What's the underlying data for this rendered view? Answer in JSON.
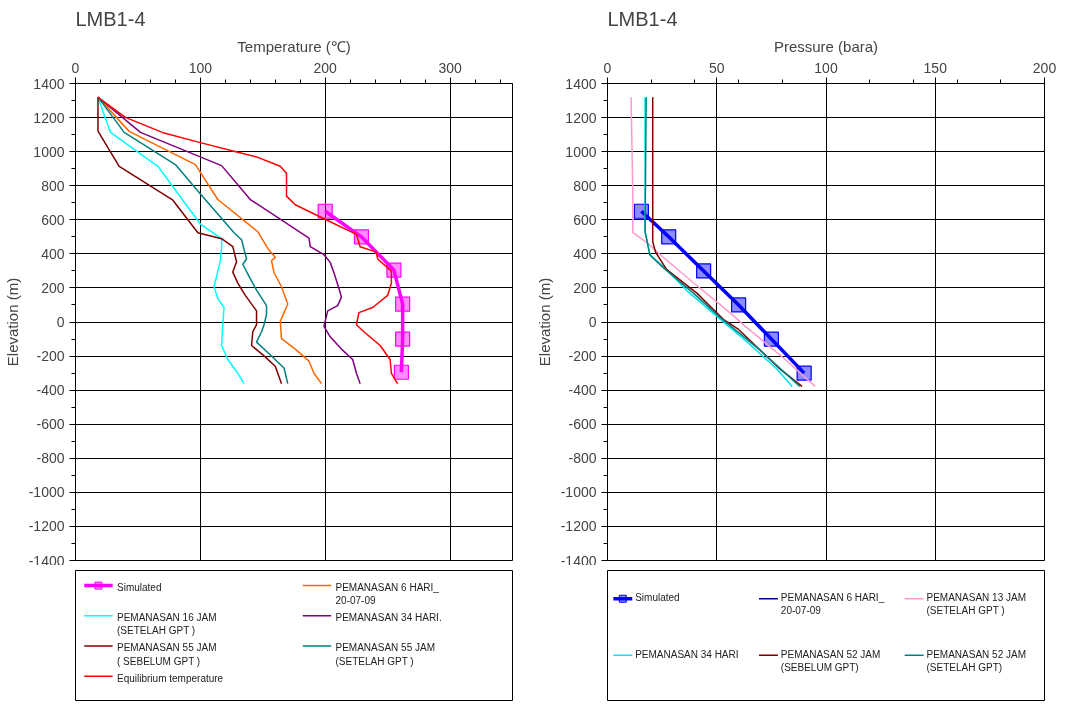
{
  "chart_data": [
    {
      "type": "line",
      "title": "LMB1-4",
      "xlabel": "Temperature (℃)",
      "ylabel": "Elevation (m)",
      "xlim": [
        0,
        350
      ],
      "xticks": [
        0,
        {
          "value": 20,
          "label": null
        },
        {
          "value": 40,
          "label": null
        },
        {
          "value": 60,
          "label": null
        },
        {
          "value": 80,
          "label": null
        },
        100,
        {
          "value": 120,
          "label": null
        },
        {
          "value": 140,
          "label": null
        },
        {
          "value": 160,
          "label": null
        },
        {
          "value": 180,
          "label": null
        },
        200,
        {
          "value": 220,
          "label": null
        },
        {
          "value": 240,
          "label": null
        },
        {
          "value": 260,
          "label": null
        },
        {
          "value": 280,
          "label": null
        },
        300,
        {
          "value": 320,
          "label": null
        },
        {
          "value": 340,
          "label": null
        }
      ],
      "ylim": [
        -1400,
        1400
      ],
      "yticks": [
        -1400,
        {
          "value": -1300,
          "label": null
        },
        -1200,
        {
          "value": -1100,
          "label": null
        },
        -1000,
        {
          "value": -900,
          "label": null
        },
        -800,
        {
          "value": -700,
          "label": null
        },
        -600,
        {
          "value": -500,
          "label": null
        },
        -400,
        {
          "value": -300,
          "label": null
        },
        -200,
        {
          "value": -100,
          "label": null
        },
        0,
        {
          "value": 100,
          "label": null
        },
        200,
        {
          "value": 300,
          "label": null
        },
        400,
        {
          "value": 500,
          "label": null
        },
        600,
        {
          "value": 700,
          "label": null
        },
        800,
        {
          "value": 900,
          "label": null
        },
        1000,
        {
          "value": 1100,
          "label": null
        },
        1200,
        {
          "value": 1300,
          "label": null
        },
        1400
      ],
      "grid": true,
      "legend": "bottom",
      "series": [
        {
          "name": "Simulated",
          "color": "#ff00ff",
          "marker": "square",
          "x": [
            200,
            229,
            255,
            262,
            262,
            261
          ],
          "values": [
            650,
            500,
            305,
            105,
            -100,
            -295
          ]
        },
        {
          "name": "PEMANASAN 6 HARI_\n20-07-09",
          "color": "#ff6600",
          "x": [
            18,
            43,
            96,
            114,
            146,
            154,
            160,
            157,
            159,
            165,
            170,
            167,
            164,
            165,
            176,
            187,
            191,
            197
          ],
          "values": [
            1320,
            1119,
            924,
            719,
            530,
            432,
            380,
            360,
            289,
            207,
            106,
            55,
            4,
            -98,
            -159,
            -230,
            -301,
            -362
          ]
        },
        {
          "name": "PEMANASAN 16 JAM\n(SETELAH GPT )",
          "color": "#00ffff",
          "x": [
            18,
            28,
            66,
            100,
            117,
            117,
            116,
            113,
            111,
            114,
            119,
            118,
            117,
            122,
            130,
            135
          ],
          "values": [
            1320,
            1113,
            914,
            575,
            489,
            432,
            360,
            268,
            207,
            136,
            85,
            -6,
            -138,
            -220,
            -301,
            -362
          ]
        },
        {
          "name": "PEMANASAN 34 HARI.",
          "color": "#800080",
          "x": [
            18,
            52,
            117,
            140,
            187,
            188,
            199,
            204,
            207,
            211,
            213,
            210,
            202,
            199,
            204,
            213,
            222,
            225,
            228
          ],
          "values": [
            1320,
            1113,
            918,
            719,
            493,
            442,
            395,
            350,
            289,
            197,
            146,
            96,
            65,
            -26,
            -87,
            -159,
            -220,
            -301,
            -362
          ]
        },
        {
          "name": "PEMANASAN 55 JAM\n( SEBELUM GPT )",
          "color": "#800000",
          "x": [
            18,
            18,
            35,
            78,
            98,
            117,
            126,
            129,
            126,
            130,
            136,
            145,
            145,
            142,
            141,
            151,
            160,
            165
          ],
          "values": [
            1320,
            1120,
            914,
            715,
            524,
            489,
            442,
            354,
            293,
            228,
            156,
            65,
            -16,
            -57,
            -138,
            -199,
            -260,
            -362
          ]
        },
        {
          "name": "PEMANASAN 55 JAM\n(SETELAH GPT )",
          "color": "#008080",
          "x": [
            18,
            39,
            80,
            99,
            127,
            133,
            137,
            134,
            139,
            145,
            153,
            153,
            151,
            149,
            145,
            154,
            167,
            170
          ],
          "values": [
            1320,
            1113,
            924,
            760,
            524,
            483,
            370,
            339,
            268,
            187,
            96,
            45,
            -16,
            -57,
            -118,
            -179,
            -270,
            -362
          ]
        },
        {
          "name": "Equilibrium temperature",
          "color": "#ff0000",
          "x": [
            18,
            40,
            71,
            100,
            130,
            145,
            164,
            169,
            169,
            176,
            199,
            225,
            228,
            241,
            242,
            253,
            253,
            250,
            238,
            227,
            225,
            231,
            244,
            252,
            253,
            258
          ],
          "values": [
            1318,
            1201,
            1109,
            1053,
            996,
            969,
            914,
            873,
            739,
            688,
            606,
            514,
            442,
            410,
            370,
            299,
            228,
            156,
            85,
            55,
            -16,
            -57,
            -138,
            -220,
            -301,
            -362
          ]
        }
      ]
    },
    {
      "type": "line",
      "title": "LMB1-4",
      "xlabel": "Pressure (bara)",
      "ylabel": "Elevation (m)",
      "xlim": [
        0,
        200
      ],
      "xticks": [
        0,
        {
          "value": 20,
          "label": null
        },
        {
          "value": 40,
          "label": null
        },
        50,
        {
          "value": 60,
          "label": null
        },
        {
          "value": 80,
          "label": null
        },
        100,
        {
          "value": 120,
          "label": null
        },
        {
          "value": 140,
          "label": null
        },
        150,
        {
          "value": 160,
          "label": null
        },
        {
          "value": 180,
          "label": null
        },
        200
      ],
      "ylim": [
        -1400,
        1400
      ],
      "yticks": [
        -1400,
        {
          "value": -1300,
          "label": null
        },
        -1200,
        {
          "value": -1100,
          "label": null
        },
        -1000,
        {
          "value": -900,
          "label": null
        },
        -800,
        {
          "value": -700,
          "label": null
        },
        -600,
        {
          "value": -500,
          "label": null
        },
        -400,
        {
          "value": -300,
          "label": null
        },
        -200,
        {
          "value": -100,
          "label": null
        },
        0,
        {
          "value": 100,
          "label": null
        },
        200,
        {
          "value": 300,
          "label": null
        },
        400,
        {
          "value": 500,
          "label": null
        },
        600,
        {
          "value": 700,
          "label": null
        },
        800,
        {
          "value": 900,
          "label": null
        },
        1000,
        {
          "value": 1100,
          "label": null
        },
        1200,
        {
          "value": 1300,
          "label": null
        },
        1400
      ],
      "grid": true,
      "legend": "bottom",
      "series": [
        {
          "name": "Simulated",
          "color": "#0000ff",
          "marker": "square",
          "x": [
            15.5,
            28,
            44,
            60,
            75,
            90
          ],
          "values": [
            650,
            500,
            300,
            100,
            -100,
            -300
          ]
        },
        {
          "name": "PEMANASAN 6 HARI_\n20-07-09",
          "color": "#000080"
        },
        {
          "name": "PEMANASAN 13 JAM\n(SETELAH GPT )",
          "color": "#ff99cc",
          "x": [
            10.8,
            11.6,
            11.6,
            18.6,
            25.5,
            37.7,
            56.8,
            62,
            81,
            95
          ],
          "values": [
            1319,
            733,
            525,
            461,
            380,
            248,
            46,
            -14,
            -216,
            -378
          ]
        },
        {
          "name": "PEMANASAN 34 HARI",
          "color": "#00e5ee",
          "x": [
            17.2,
            17.2,
            19.4,
            27,
            36.8,
            49.8,
            63.7,
            77.6,
            84.5
          ],
          "values": [
            1319,
            531,
            394,
            309,
            178,
            36,
            -115,
            -277,
            -378
          ]
        },
        {
          "name": "PEMANASAN 52 JAM\n(SEBELUM GPT)",
          "color": "#800000",
          "x": [
            20.7,
            20.7,
            22,
            27,
            41,
            53,
            60,
            79,
            89
          ],
          "values": [
            1319,
            471,
            410,
            309,
            168,
            16,
            -44,
            -277,
            -378
          ]
        },
        {
          "name": "PEMANASAN 52 JAM\n(SETELAH GPT)",
          "color": "#008080",
          "x": [
            17.7,
            17.2,
            19.4,
            25.5,
            39.4,
            51.6,
            69,
            88
          ],
          "values": [
            1319,
            531,
            394,
            319,
            168,
            26,
            -156,
            -378
          ]
        }
      ]
    }
  ]
}
